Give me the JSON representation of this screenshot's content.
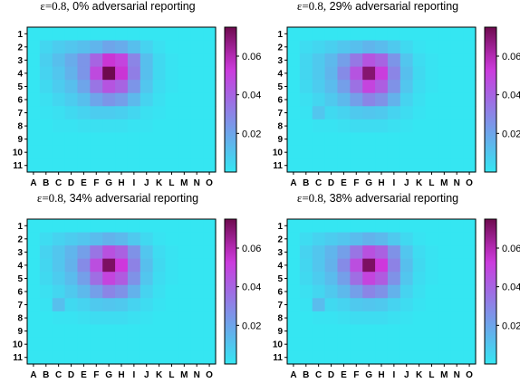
{
  "colors": {
    "low": "#35e6f2",
    "mid": "#cf37dc",
    "high": "#6e0a4e"
  },
  "chart_data": [
    {
      "type": "heatmap",
      "title_eps": "ε=0.8,",
      "title_rest": "0% adversarial reporting",
      "x_categories": [
        "A",
        "B",
        "C",
        "D",
        "E",
        "F",
        "G",
        "H",
        "I",
        "J",
        "K",
        "L",
        "M",
        "N",
        "O"
      ],
      "y_categories": [
        "1",
        "2",
        "3",
        "4",
        "5",
        "6",
        "7",
        "8",
        "9",
        "10",
        "11"
      ],
      "colorbar_ticks": [
        "0.06",
        "0.04",
        "0.02"
      ],
      "colorbar_tick_values": [
        0.06,
        0.04,
        0.02
      ],
      "vmin": 0.0,
      "vmax": 0.075,
      "values": [
        [
          0,
          0,
          0,
          0,
          0,
          0,
          0,
          0,
          0,
          0,
          0,
          0,
          0,
          0,
          0
        ],
        [
          0,
          0.005,
          0.008,
          0.01,
          0.012,
          0.015,
          0.02,
          0.018,
          0.012,
          0.006,
          0.002,
          0,
          0,
          0,
          0
        ],
        [
          0,
          0.007,
          0.012,
          0.018,
          0.025,
          0.04,
          0.055,
          0.05,
          0.03,
          0.012,
          0.004,
          0.001,
          0,
          0,
          0
        ],
        [
          0,
          0.006,
          0.01,
          0.016,
          0.025,
          0.048,
          0.075,
          0.055,
          0.032,
          0.012,
          0.004,
          0.001,
          0,
          0,
          0
        ],
        [
          0,
          0.004,
          0.008,
          0.012,
          0.02,
          0.035,
          0.045,
          0.04,
          0.025,
          0.01,
          0.003,
          0.001,
          0,
          0,
          0
        ],
        [
          0,
          0.002,
          0.005,
          0.008,
          0.012,
          0.02,
          0.025,
          0.022,
          0.014,
          0.006,
          0.002,
          0,
          0,
          0,
          0
        ],
        [
          0,
          0.001,
          0.002,
          0.004,
          0.006,
          0.008,
          0.008,
          0.007,
          0.005,
          0.002,
          0.001,
          0,
          0,
          0,
          0
        ],
        [
          0,
          0,
          0.001,
          0.001,
          0.002,
          0.002,
          0.002,
          0.002,
          0.001,
          0.001,
          0,
          0,
          0,
          0,
          0
        ],
        [
          0,
          0,
          0,
          0,
          0,
          0,
          0,
          0,
          0,
          0,
          0,
          0,
          0,
          0,
          0
        ],
        [
          0,
          0,
          0,
          0,
          0,
          0,
          0,
          0,
          0,
          0,
          0,
          0,
          0,
          0,
          0
        ],
        [
          0,
          0,
          0,
          0,
          0,
          0,
          0,
          0,
          0,
          0,
          0,
          0,
          0,
          0,
          0
        ]
      ]
    },
    {
      "type": "heatmap",
      "title_eps": "ε=0.8,",
      "title_rest": "29% adversarial reporting",
      "x_categories": [
        "A",
        "B",
        "C",
        "D",
        "E",
        "F",
        "G",
        "H",
        "I",
        "J",
        "K",
        "L",
        "M",
        "N",
        "O"
      ],
      "y_categories": [
        "1",
        "2",
        "3",
        "4",
        "5",
        "6",
        "7",
        "8",
        "9",
        "10",
        "11"
      ],
      "colorbar_ticks": [
        "0.06",
        "0.04",
        "0.02"
      ],
      "colorbar_tick_values": [
        0.06,
        0.04,
        0.02
      ],
      "vmin": 0.0,
      "vmax": 0.075,
      "values": [
        [
          0,
          0,
          0,
          0,
          0,
          0,
          0,
          0,
          0,
          0,
          0,
          0,
          0,
          0,
          0
        ],
        [
          0,
          0.003,
          0.005,
          0.007,
          0.01,
          0.012,
          0.015,
          0.013,
          0.009,
          0.004,
          0.001,
          0,
          0,
          0,
          0
        ],
        [
          0,
          0.005,
          0.009,
          0.014,
          0.022,
          0.034,
          0.045,
          0.04,
          0.025,
          0.01,
          0.003,
          0.001,
          0,
          0,
          0
        ],
        [
          0,
          0.005,
          0.009,
          0.015,
          0.028,
          0.045,
          0.07,
          0.052,
          0.03,
          0.012,
          0.004,
          0.001,
          0,
          0,
          0
        ],
        [
          0,
          0.004,
          0.008,
          0.013,
          0.022,
          0.036,
          0.05,
          0.042,
          0.026,
          0.01,
          0.003,
          0.001,
          0,
          0,
          0
        ],
        [
          0,
          0.002,
          0.005,
          0.009,
          0.014,
          0.022,
          0.03,
          0.026,
          0.016,
          0.006,
          0.002,
          0,
          0,
          0,
          0
        ],
        [
          0,
          0.001,
          0.01,
          0.004,
          0.006,
          0.009,
          0.01,
          0.009,
          0.006,
          0.003,
          0.001,
          0,
          0,
          0,
          0
        ],
        [
          0,
          0,
          0.001,
          0.001,
          0.002,
          0.003,
          0.003,
          0.003,
          0.002,
          0.001,
          0,
          0,
          0,
          0,
          0
        ],
        [
          0,
          0,
          0,
          0,
          0,
          0,
          0,
          0,
          0,
          0,
          0,
          0,
          0,
          0,
          0
        ],
        [
          0,
          0,
          0,
          0,
          0,
          0,
          0,
          0,
          0,
          0,
          0,
          0,
          0,
          0,
          0
        ],
        [
          0,
          0,
          0,
          0,
          0,
          0,
          0,
          0,
          0,
          0,
          0,
          0,
          0,
          0,
          0
        ]
      ]
    },
    {
      "type": "heatmap",
      "title_eps": "ε=0.8,",
      "title_rest": "34% adversarial reporting",
      "x_categories": [
        "A",
        "B",
        "C",
        "D",
        "E",
        "F",
        "G",
        "H",
        "I",
        "J",
        "K",
        "L",
        "M",
        "N",
        "O"
      ],
      "y_categories": [
        "1",
        "2",
        "3",
        "4",
        "5",
        "6",
        "7",
        "8",
        "9",
        "10",
        "11"
      ],
      "colorbar_ticks": [
        "0.06",
        "0.04",
        "0.02"
      ],
      "colorbar_tick_values": [
        0.06,
        0.04,
        0.02
      ],
      "vmin": 0.0,
      "vmax": 0.075,
      "values": [
        [
          0,
          0,
          0,
          0,
          0,
          0,
          0,
          0,
          0,
          0,
          0,
          0,
          0,
          0,
          0
        ],
        [
          0,
          0.003,
          0.006,
          0.008,
          0.01,
          0.013,
          0.016,
          0.014,
          0.009,
          0.004,
          0.001,
          0,
          0,
          0,
          0
        ],
        [
          0,
          0.006,
          0.01,
          0.015,
          0.022,
          0.035,
          0.046,
          0.041,
          0.026,
          0.01,
          0.003,
          0.001,
          0,
          0,
          0
        ],
        [
          0,
          0.005,
          0.01,
          0.016,
          0.028,
          0.047,
          0.072,
          0.054,
          0.031,
          0.012,
          0.004,
          0.001,
          0,
          0,
          0
        ],
        [
          0,
          0.004,
          0.008,
          0.013,
          0.022,
          0.037,
          0.05,
          0.043,
          0.026,
          0.01,
          0.003,
          0.001,
          0,
          0,
          0
        ],
        [
          0,
          0.002,
          0.005,
          0.009,
          0.014,
          0.022,
          0.03,
          0.026,
          0.016,
          0.006,
          0.002,
          0,
          0,
          0,
          0
        ],
        [
          0,
          0.001,
          0.012,
          0.004,
          0.006,
          0.009,
          0.01,
          0.009,
          0.006,
          0.003,
          0.001,
          0,
          0,
          0,
          0
        ],
        [
          0,
          0,
          0.001,
          0.001,
          0.002,
          0.003,
          0.003,
          0.003,
          0.002,
          0.001,
          0,
          0,
          0,
          0,
          0
        ],
        [
          0,
          0,
          0,
          0,
          0,
          0,
          0,
          0,
          0,
          0,
          0,
          0,
          0,
          0,
          0
        ],
        [
          0,
          0,
          0,
          0,
          0,
          0,
          0,
          0,
          0,
          0,
          0,
          0,
          0,
          0,
          0
        ],
        [
          0,
          0,
          0,
          0,
          0,
          0,
          0,
          0,
          0,
          0,
          0,
          0,
          0,
          0,
          0
        ]
      ]
    },
    {
      "type": "heatmap",
      "title_eps": "ε=0.8,",
      "title_rest": "38% adversarial reporting",
      "x_categories": [
        "A",
        "B",
        "C",
        "D",
        "E",
        "F",
        "G",
        "H",
        "I",
        "J",
        "K",
        "L",
        "M",
        "N",
        "O"
      ],
      "y_categories": [
        "1",
        "2",
        "3",
        "4",
        "5",
        "6",
        "7",
        "8",
        "9",
        "10",
        "11"
      ],
      "colorbar_ticks": [
        "0.06",
        "0.04",
        "0.02"
      ],
      "colorbar_tick_values": [
        0.06,
        0.04,
        0.02
      ],
      "vmin": 0.0,
      "vmax": 0.075,
      "values": [
        [
          0,
          0,
          0,
          0,
          0,
          0,
          0,
          0,
          0,
          0,
          0,
          0,
          0,
          0,
          0
        ],
        [
          0,
          0.003,
          0.006,
          0.008,
          0.01,
          0.013,
          0.016,
          0.014,
          0.009,
          0.004,
          0.001,
          0,
          0,
          0,
          0
        ],
        [
          0,
          0.006,
          0.01,
          0.015,
          0.022,
          0.035,
          0.046,
          0.041,
          0.026,
          0.01,
          0.003,
          0.001,
          0,
          0,
          0
        ],
        [
          0,
          0.005,
          0.01,
          0.016,
          0.028,
          0.047,
          0.072,
          0.054,
          0.031,
          0.012,
          0.004,
          0.001,
          0,
          0,
          0
        ],
        [
          0,
          0.004,
          0.008,
          0.013,
          0.022,
          0.037,
          0.05,
          0.043,
          0.026,
          0.01,
          0.003,
          0.001,
          0,
          0,
          0
        ],
        [
          0,
          0.002,
          0.005,
          0.009,
          0.014,
          0.022,
          0.03,
          0.026,
          0.016,
          0.006,
          0.002,
          0,
          0,
          0,
          0
        ],
        [
          0,
          0.001,
          0.013,
          0.004,
          0.006,
          0.009,
          0.01,
          0.009,
          0.006,
          0.003,
          0.001,
          0,
          0,
          0,
          0
        ],
        [
          0,
          0,
          0.001,
          0.001,
          0.002,
          0.003,
          0.003,
          0.003,
          0.002,
          0.001,
          0,
          0,
          0,
          0,
          0
        ],
        [
          0,
          0,
          0,
          0,
          0,
          0,
          0,
          0,
          0,
          0,
          0,
          0,
          0,
          0,
          0
        ],
        [
          0,
          0,
          0,
          0,
          0,
          0,
          0,
          0,
          0,
          0,
          0,
          0,
          0,
          0,
          0
        ],
        [
          0,
          0,
          0,
          0,
          0,
          0,
          0,
          0,
          0,
          0,
          0,
          0,
          0,
          0,
          0
        ]
      ]
    }
  ]
}
